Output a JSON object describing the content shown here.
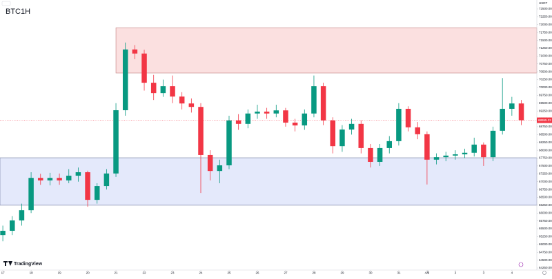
{
  "chart_data": {
    "type": "candlestick",
    "title": "BTC1H",
    "currency": "USDT",
    "brand": "TradingView",
    "up_color": "#089981",
    "down_color": "#f23645",
    "xlim": [
      -0.1,
      18.88
    ],
    "ylim": [
      64185,
      72785
    ],
    "candle_step": 0.3333,
    "xticks": [
      {
        "value": 0,
        "label": "17"
      },
      {
        "value": 1,
        "label": "18"
      },
      {
        "value": 2,
        "label": "19"
      },
      {
        "value": 3,
        "label": "20"
      },
      {
        "value": 4,
        "label": "21"
      },
      {
        "value": 5,
        "label": "22"
      },
      {
        "value": 6,
        "label": "23"
      },
      {
        "value": 7,
        "label": "24"
      },
      {
        "value": 8,
        "label": "25"
      },
      {
        "value": 9,
        "label": "26"
      },
      {
        "value": 10,
        "label": "27"
      },
      {
        "value": 11,
        "label": "28"
      },
      {
        "value": 12,
        "label": "29"
      },
      {
        "value": 13,
        "label": "30"
      },
      {
        "value": 14,
        "label": "31"
      },
      {
        "value": 15,
        "label": "4月"
      },
      {
        "value": 16,
        "label": "2"
      },
      {
        "value": 17,
        "label": "3"
      },
      {
        "value": 18,
        "label": "4"
      }
    ],
    "yticks": [
      {
        "value": 64250,
        "label": "64250.00"
      },
      {
        "value": 64500,
        "label": "64500.00"
      },
      {
        "value": 64750,
        "label": "64750.00"
      },
      {
        "value": 65000,
        "label": "65000.00"
      },
      {
        "value": 65250,
        "label": "65250.00"
      },
      {
        "value": 65500,
        "label": "65500.00"
      },
      {
        "value": 65750,
        "label": "65750.00"
      },
      {
        "value": 66000,
        "label": "66000.00"
      },
      {
        "value": 66250,
        "label": "66250.00"
      },
      {
        "value": 66500,
        "label": "66500.00"
      },
      {
        "value": 66750,
        "label": "66750.00"
      },
      {
        "value": 67000,
        "label": "67000.00"
      },
      {
        "value": 67250,
        "label": "67250.00"
      },
      {
        "value": 67500,
        "label": "67500.00"
      },
      {
        "value": 67750,
        "label": "67750.00"
      },
      {
        "value": 68000,
        "label": "68000.00"
      },
      {
        "value": 68250,
        "label": "68250.00"
      },
      {
        "value": 68500,
        "label": "68500.00"
      },
      {
        "value": 68750,
        "label": "68750.00"
      },
      {
        "value": 69000,
        "label": "69000.00"
      },
      {
        "value": 69250,
        "label": "69250.00"
      },
      {
        "value": 69500,
        "label": "69500.00"
      },
      {
        "value": 69750,
        "label": "69750.00"
      },
      {
        "value": 70000,
        "label": "70000.00"
      },
      {
        "value": 70250,
        "label": "70250.00"
      },
      {
        "value": 70500,
        "label": "70500.00"
      },
      {
        "value": 70750,
        "label": "70750.00"
      },
      {
        "value": 71000,
        "label": "71000.00"
      },
      {
        "value": 71250,
        "label": "71250.00"
      },
      {
        "value": 71500,
        "label": "71500.00"
      },
      {
        "value": 71750,
        "label": "71750.00"
      },
      {
        "value": 72000,
        "label": "72000.00"
      },
      {
        "value": 72250,
        "label": "72250.00"
      },
      {
        "value": 72500,
        "label": "72500.00"
      }
    ],
    "zones": [
      {
        "from": 70460,
        "to": 71900,
        "x_start": 4,
        "fill": "#fbe0e0",
        "stroke": "#c98a8a"
      },
      {
        "from": 66250,
        "to": 67760,
        "x_start": -0.1,
        "fill": "#e4e9fb",
        "stroke": "#7d86a8"
      }
    ],
    "last_price": 68955.22,
    "last_price_color": "#f23645",
    "ohlc": [
      [
        65300,
        65600,
        65100,
        65435
      ],
      [
        65435,
        65900,
        65300,
        65765
      ],
      [
        65765,
        66300,
        65600,
        66090
      ],
      [
        66090,
        67300,
        66000,
        67120
      ],
      [
        67120,
        67250,
        66900,
        67040
      ],
      [
        67040,
        67280,
        66880,
        67120
      ],
      [
        67120,
        67260,
        66900,
        67040
      ],
      [
        67040,
        67400,
        66950,
        67190
      ],
      [
        67190,
        67450,
        67000,
        67300
      ],
      [
        67300,
        67350,
        66200,
        66420
      ],
      [
        66420,
        66950,
        66300,
        66860
      ],
      [
        66860,
        67400,
        66750,
        67260
      ],
      [
        67260,
        69500,
        67150,
        69275
      ],
      [
        69275,
        71430,
        69100,
        71210
      ],
      [
        71210,
        71350,
        70900,
        71080
      ],
      [
        71080,
        71200,
        69900,
        70150
      ],
      [
        70150,
        70400,
        69600,
        69820
      ],
      [
        69820,
        70250,
        69700,
        70040
      ],
      [
        70040,
        70380,
        69500,
        69710
      ],
      [
        69710,
        69850,
        69300,
        69490
      ],
      [
        69490,
        69650,
        69200,
        69380
      ],
      [
        69380,
        69500,
        66640,
        67850
      ],
      [
        67850,
        68000,
        67040,
        67340
      ],
      [
        67340,
        67700,
        66950,
        67520
      ],
      [
        67520,
        69100,
        67400,
        68950
      ],
      [
        68950,
        69150,
        68650,
        68840
      ],
      [
        68840,
        69300,
        68700,
        69170
      ],
      [
        69170,
        69450,
        69000,
        69230
      ],
      [
        69230,
        69350,
        69000,
        69170
      ],
      [
        69170,
        69450,
        69050,
        69270
      ],
      [
        69270,
        69350,
        68750,
        68880
      ],
      [
        68880,
        69000,
        68600,
        68790
      ],
      [
        68790,
        69300,
        68650,
        69170
      ],
      [
        69170,
        70380,
        69050,
        70040
      ],
      [
        70040,
        70150,
        68800,
        68950
      ],
      [
        68950,
        69050,
        67900,
        68130
      ],
      [
        68130,
        68800,
        67950,
        68660
      ],
      [
        68660,
        69000,
        68500,
        68840
      ],
      [
        68840,
        68950,
        67900,
        68070
      ],
      [
        68070,
        68200,
        67450,
        67630
      ],
      [
        67630,
        68200,
        67500,
        68070
      ],
      [
        68070,
        68450,
        67900,
        68290
      ],
      [
        68290,
        69500,
        68150,
        69320
      ],
      [
        69320,
        69400,
        68600,
        68730
      ],
      [
        68730,
        68900,
        68350,
        68510
      ],
      [
        68510,
        68600,
        66910,
        67700
      ],
      [
        67700,
        67900,
        67550,
        67780
      ],
      [
        67780,
        67950,
        67650,
        67830
      ],
      [
        67830,
        68000,
        67700,
        67870
      ],
      [
        67870,
        68050,
        67750,
        67920
      ],
      [
        67920,
        68400,
        67800,
        68180
      ],
      [
        68180,
        68250,
        67500,
        67780
      ],
      [
        67780,
        68750,
        67650,
        68620
      ],
      [
        68620,
        70300,
        68500,
        69320
      ],
      [
        69320,
        69700,
        69100,
        69490
      ],
      [
        69490,
        69600,
        68800,
        68955.22
      ]
    ]
  }
}
